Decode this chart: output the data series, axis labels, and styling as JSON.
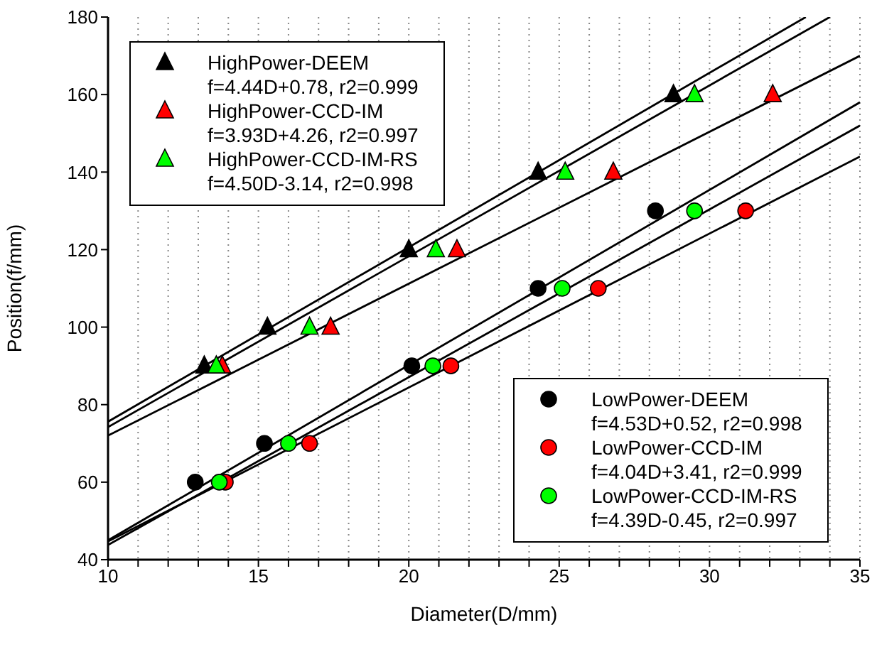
{
  "chart_data": {
    "type": "scatter",
    "xlabel": "Diameter(D/mm)",
    "ylabel": "Position(f/mm)",
    "xlim": [
      10,
      35
    ],
    "ylim": [
      40,
      180
    ],
    "xticks": [
      10,
      {
        "value": 11,
        "label": null
      },
      {
        "value": 12,
        "label": null
      },
      {
        "value": 13,
        "label": null
      },
      {
        "value": 14,
        "label": null
      },
      15,
      {
        "value": 16,
        "label": null
      },
      {
        "value": 17,
        "label": null
      },
      {
        "value": 18,
        "label": null
      },
      {
        "value": 19,
        "label": null
      },
      20,
      {
        "value": 21,
        "label": null
      },
      {
        "value": 22,
        "label": null
      },
      {
        "value": 23,
        "label": null
      },
      {
        "value": 24,
        "label": null
      },
      25,
      {
        "value": 26,
        "label": null
      },
      {
        "value": 27,
        "label": null
      },
      {
        "value": 28,
        "label": null
      },
      {
        "value": 29,
        "label": null
      },
      30,
      {
        "value": 31,
        "label": null
      },
      {
        "value": 32,
        "label": null
      },
      {
        "value": 33,
        "label": null
      },
      {
        "value": 34,
        "label": null
      },
      35
    ],
    "yticks": [
      40,
      60,
      80,
      100,
      120,
      140,
      160,
      180
    ],
    "grid": "x",
    "legend": "top left",
    "annotations": [
      "f=4.44D+0.78, r2=0.999",
      "f=3.93D+4.26, r2=0.997",
      "f=4.50D-3.14, r2=0.998",
      "f=4.53D+0.52, r2=0.998",
      "f=4.04D+3.41, r2=0.999",
      "f=4.39D-0.45, r2=0.997"
    ],
    "series": [
      {
        "type": "line",
        "color": "#000000",
        "x": [
          10,
          33.2
        ],
        "values": [
          75.6,
          180
        ]
      },
      {
        "type": "line",
        "color": "#000000",
        "x": [
          10,
          35
        ],
        "values": [
          72,
          170
        ]
      },
      {
        "type": "line",
        "color": "#000000",
        "x": [
          10,
          34
        ],
        "values": [
          74.2,
          180
        ]
      },
      {
        "type": "line",
        "color": "#000000",
        "x": [
          10,
          35
        ],
        "values": [
          45,
          158
        ]
      },
      {
        "type": "line",
        "color": "#000000",
        "x": [
          10,
          35
        ],
        "values": [
          44.7,
          144
        ]
      },
      {
        "type": "line",
        "color": "#000000",
        "x": [
          10,
          35
        ],
        "values": [
          43.8,
          152
        ]
      },
      {
        "name": "HighPower-DEEM",
        "color": "#000000",
        "marker": "triangle",
        "x": [
          13.2,
          15.3,
          20,
          24.3,
          28.8
        ],
        "values": [
          90,
          100,
          120,
          140,
          160
        ]
      },
      {
        "name": "HighPower-CCD-IM",
        "color": "#ff0000",
        "marker": "triangle",
        "x": [
          13.8,
          17.4,
          21.6,
          26.8,
          32.1
        ],
        "values": [
          90,
          100,
          120,
          140,
          160
        ]
      },
      {
        "name": "HighPower-CCD-IM-RS",
        "color": "#00ff00",
        "marker": "triangle",
        "x": [
          13.6,
          16.7,
          20.9,
          25.2,
          29.5
        ],
        "values": [
          90,
          100,
          120,
          140,
          160
        ]
      },
      {
        "name": "LowPower-DEEM",
        "color": "#000000",
        "marker": "circle",
        "x": [
          12.9,
          15.2,
          20.1,
          24.3,
          28.2
        ],
        "values": [
          60,
          70,
          90,
          110,
          130
        ]
      },
      {
        "name": "LowPower-CCD-IM",
        "color": "#ff0000",
        "marker": "circle",
        "x": [
          13.9,
          16.7,
          21.4,
          26.3,
          31.2
        ],
        "values": [
          60,
          70,
          90,
          110,
          130
        ]
      },
      {
        "name": "LowPower-CCD-IM-RS",
        "color": "#00ff00",
        "marker": "circle",
        "x": [
          13.7,
          16.0,
          20.8,
          25.1,
          29.5
        ],
        "values": [
          60,
          70,
          90,
          110,
          130
        ]
      }
    ]
  }
}
